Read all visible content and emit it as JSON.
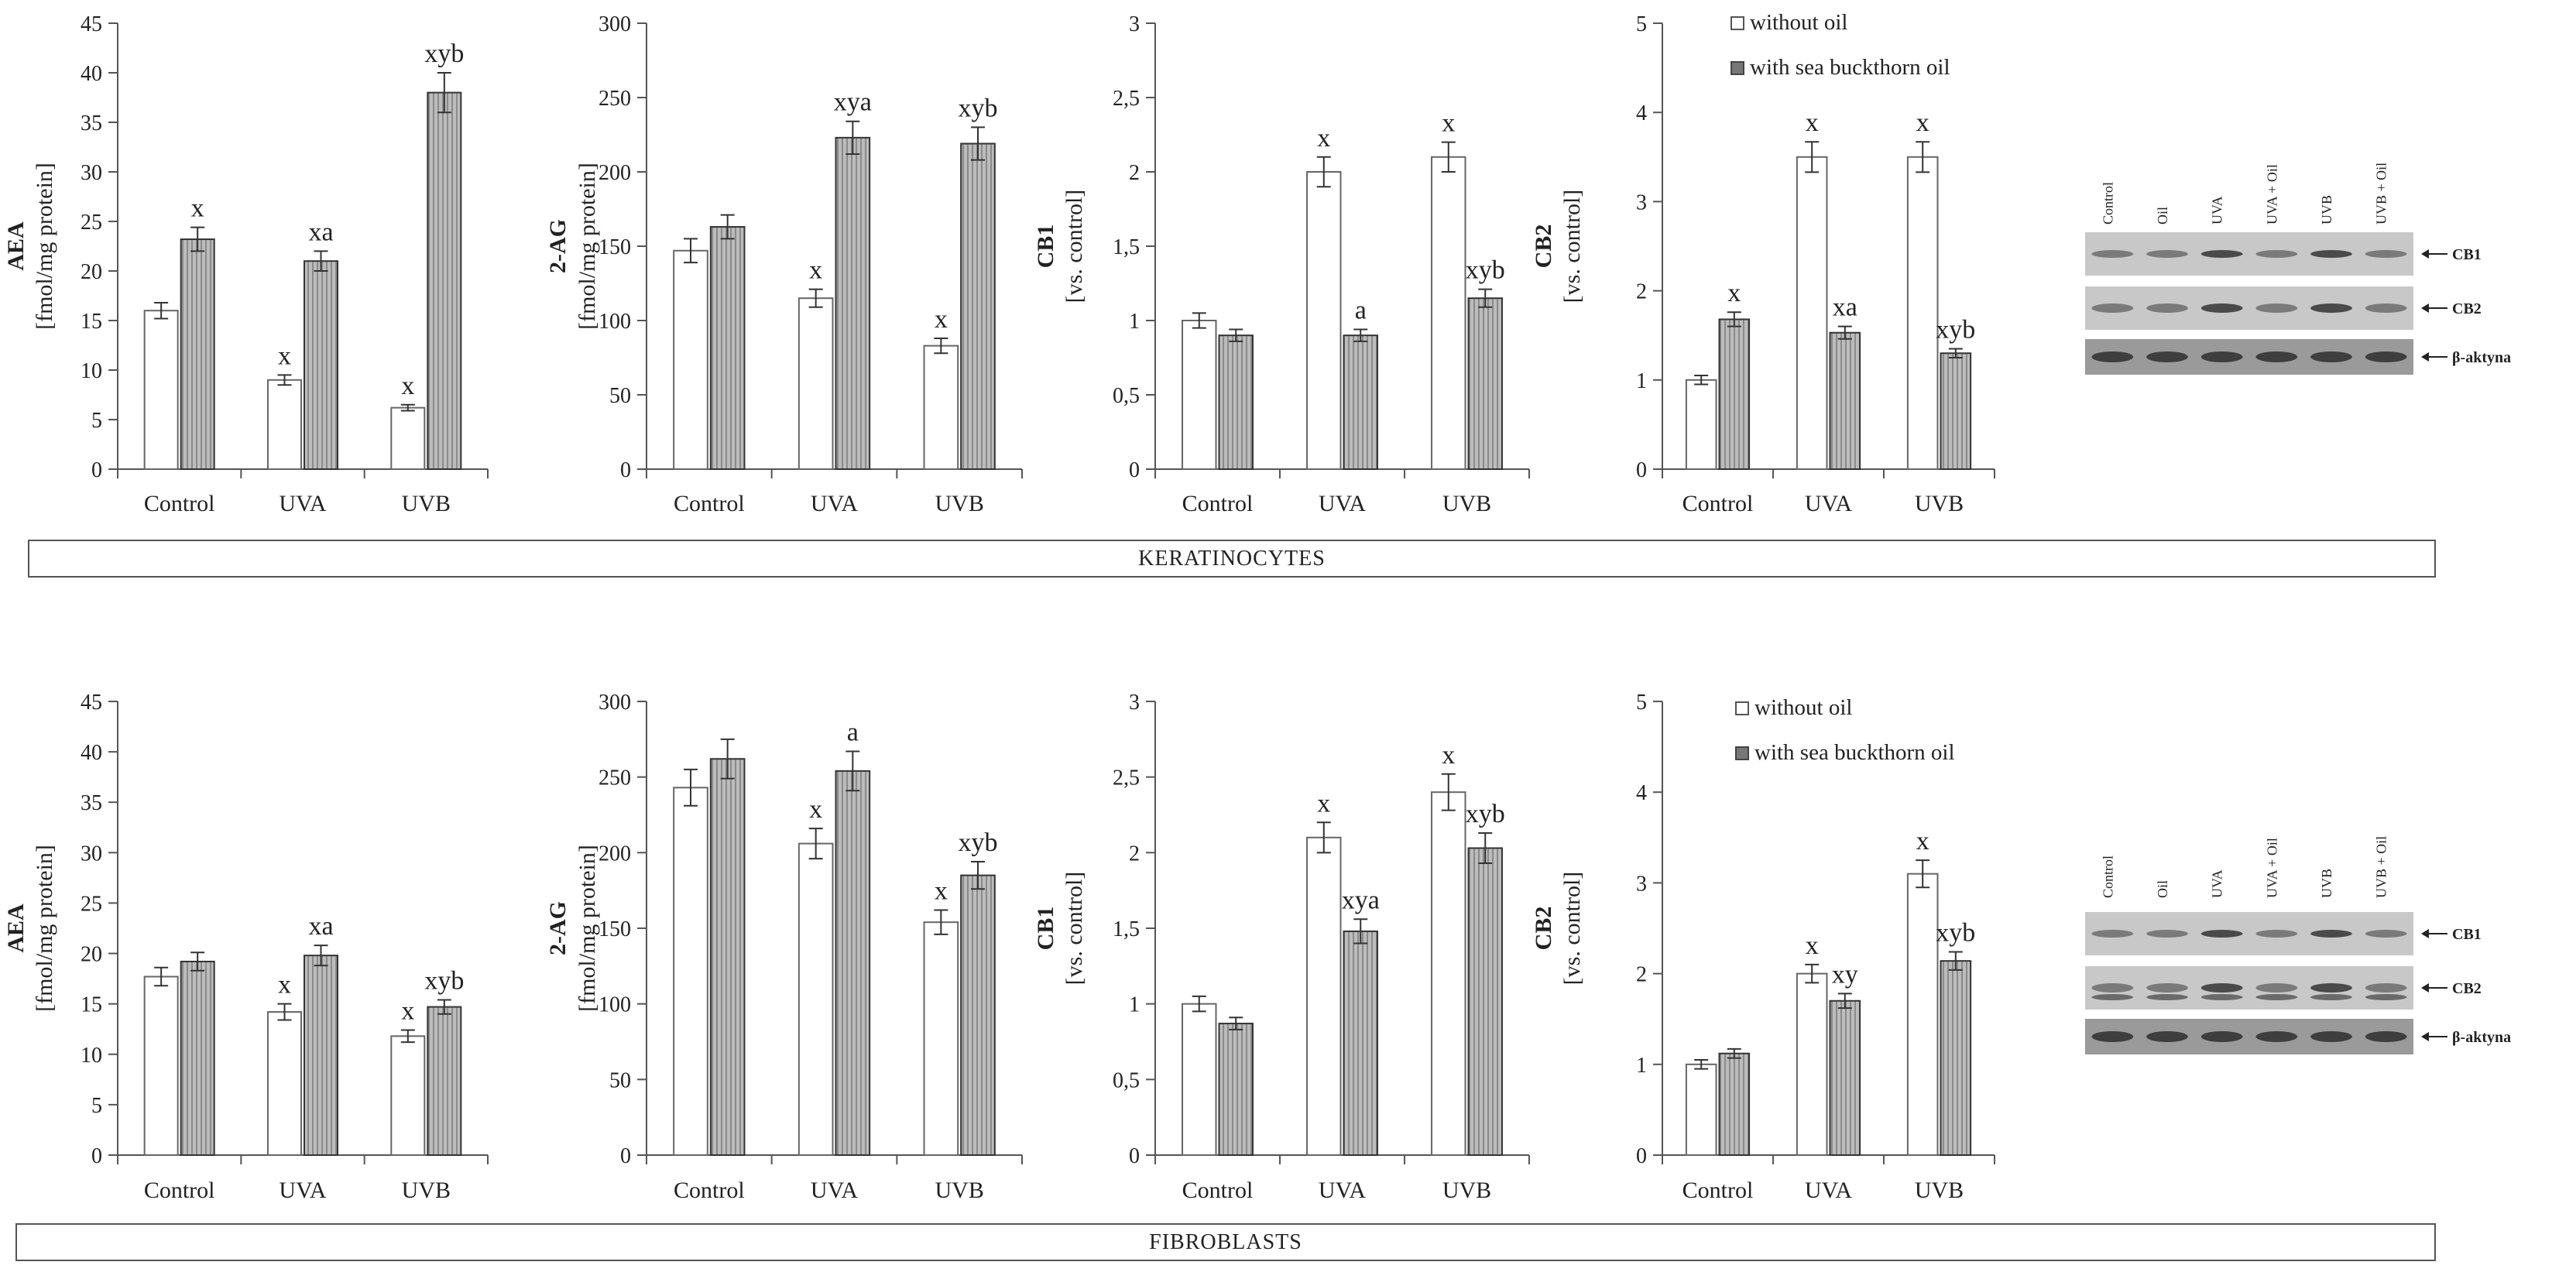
{
  "legend": {
    "without_oil": "without oil",
    "with_oil": "with sea buckthorn oil"
  },
  "sections": [
    {
      "label": "KERATINOCYTES"
    },
    {
      "label": "FIBROBLASTS"
    }
  ],
  "blots": [
    {
      "lanes": [
        "Control",
        "Oil",
        "UVA",
        "UVA + Oil",
        "UVB",
        "UVB + Oil"
      ],
      "bands": [
        "CB1",
        "CB2",
        "β-aktyna"
      ]
    },
    {
      "lanes": [
        "Control",
        "Oil",
        "UVA",
        "UVA + Oil",
        "UVB",
        "UVB + Oil"
      ],
      "bands": [
        "CB1",
        "CB2",
        "β-aktyna"
      ]
    }
  ],
  "chart_data": [
    {
      "type": "bar",
      "section": "KERATINOCYTES",
      "ylabel": "AEA",
      "yunit": "[fmol/mg protein]",
      "categories": [
        "Control",
        "UVA",
        "UVB"
      ],
      "ylim": [
        0,
        45
      ],
      "yticks": [
        "0",
        "5",
        "10",
        "15",
        "20",
        "25",
        "30",
        "35",
        "40",
        "45"
      ],
      "series": [
        {
          "name": "without oil",
          "values": [
            16,
            9,
            6.2
          ],
          "errors": [
            0.8,
            0.5,
            0.3
          ],
          "labels": [
            "",
            "x",
            "x"
          ]
        },
        {
          "name": "with sea buckthorn oil",
          "values": [
            23.2,
            21,
            38
          ],
          "errors": [
            1.2,
            1.0,
            2.0
          ],
          "labels": [
            "x",
            "xa",
            "xyb"
          ]
        }
      ]
    },
    {
      "type": "bar",
      "section": "KERATINOCYTES",
      "ylabel": "2-AG",
      "yunit": "[fmol/mg protein]",
      "categories": [
        "Control",
        "UVA",
        "UVB"
      ],
      "ylim": [
        0,
        300
      ],
      "yticks": [
        "0",
        "50",
        "100",
        "150",
        "200",
        "250",
        "300"
      ],
      "series": [
        {
          "name": "without oil",
          "values": [
            147,
            115,
            83
          ],
          "errors": [
            8,
            6,
            5
          ],
          "labels": [
            "",
            "x",
            "x"
          ]
        },
        {
          "name": "with sea buckthorn oil",
          "values": [
            163,
            223,
            219
          ],
          "errors": [
            8,
            11,
            11
          ],
          "labels": [
            "",
            "xya",
            "xyb"
          ]
        }
      ]
    },
    {
      "type": "bar",
      "section": "KERATINOCYTES",
      "ylabel": "CB1",
      "yunit": "[vs. control]",
      "categories": [
        "Control",
        "UVA",
        "UVB"
      ],
      "ylim": [
        0,
        3
      ],
      "yticks": [
        "0",
        "0,5",
        "1",
        "1,5",
        "2",
        "2,5",
        "3"
      ],
      "series": [
        {
          "name": "without oil",
          "values": [
            1.0,
            2.0,
            2.1
          ],
          "errors": [
            0.05,
            0.1,
            0.1
          ],
          "labels": [
            "",
            "x",
            "x"
          ]
        },
        {
          "name": "with sea buckthorn oil",
          "values": [
            0.9,
            0.9,
            1.15
          ],
          "errors": [
            0.04,
            0.04,
            0.06
          ],
          "labels": [
            "",
            "a",
            "xyb"
          ]
        }
      ]
    },
    {
      "type": "bar",
      "section": "KERATINOCYTES",
      "ylabel": "CB2",
      "yunit": "[vs. control]",
      "categories": [
        "Control",
        "UVA",
        "UVB"
      ],
      "ylim": [
        0,
        5
      ],
      "yticks": [
        "0",
        "1",
        "2",
        "3",
        "4",
        "5"
      ],
      "series": [
        {
          "name": "without oil",
          "values": [
            1.0,
            3.5,
            3.5
          ],
          "errors": [
            0.05,
            0.17,
            0.17
          ],
          "labels": [
            "",
            "x",
            "x"
          ]
        },
        {
          "name": "with sea buckthorn oil",
          "values": [
            1.68,
            1.53,
            1.3
          ],
          "errors": [
            0.08,
            0.07,
            0.05
          ],
          "labels": [
            "x",
            "xa",
            "xyb"
          ]
        }
      ]
    },
    {
      "type": "bar",
      "section": "FIBROBLASTS",
      "ylabel": "AEA",
      "yunit": "[fmol/mg protein]",
      "categories": [
        "Control",
        "UVA",
        "UVB"
      ],
      "ylim": [
        0,
        45
      ],
      "yticks": [
        "0",
        "5",
        "10",
        "15",
        "20",
        "25",
        "30",
        "35",
        "40",
        "45"
      ],
      "series": [
        {
          "name": "without oil",
          "values": [
            17.7,
            14.2,
            11.8
          ],
          "errors": [
            0.9,
            0.8,
            0.6
          ],
          "labels": [
            "",
            "x",
            "x"
          ]
        },
        {
          "name": "with sea buckthorn oil",
          "values": [
            19.2,
            19.8,
            14.7
          ],
          "errors": [
            0.9,
            1.0,
            0.7
          ],
          "labels": [
            "",
            "xa",
            "xyb"
          ]
        }
      ]
    },
    {
      "type": "bar",
      "section": "FIBROBLASTS",
      "ylabel": "2-AG",
      "yunit": "[fmol/mg protein]",
      "categories": [
        "Control",
        "UVA",
        "UVB"
      ],
      "ylim": [
        0,
        300
      ],
      "yticks": [
        "0",
        "50",
        "100",
        "150",
        "200",
        "250",
        "300"
      ],
      "series": [
        {
          "name": "without oil",
          "values": [
            243,
            206,
            154
          ],
          "errors": [
            12,
            10,
            8
          ],
          "labels": [
            "",
            "x",
            "x"
          ]
        },
        {
          "name": "with sea buckthorn oil",
          "values": [
            262,
            254,
            185
          ],
          "errors": [
            13,
            13,
            9
          ],
          "labels": [
            "",
            "a",
            "xyb"
          ]
        }
      ]
    },
    {
      "type": "bar",
      "section": "FIBROBLASTS",
      "ylabel": "CB1",
      "yunit": "[vs. control]",
      "categories": [
        "Control",
        "UVA",
        "UVB"
      ],
      "ylim": [
        0,
        3
      ],
      "yticks": [
        "0",
        "0,5",
        "1",
        "1,5",
        "2",
        "2,5",
        "3"
      ],
      "series": [
        {
          "name": "without oil",
          "values": [
            1.0,
            2.1,
            2.4
          ],
          "errors": [
            0.05,
            0.1,
            0.12
          ],
          "labels": [
            "",
            "x",
            "x"
          ]
        },
        {
          "name": "with sea buckthorn oil",
          "values": [
            0.87,
            1.48,
            2.03
          ],
          "errors": [
            0.04,
            0.08,
            0.1
          ],
          "labels": [
            "",
            "xya",
            "xyb"
          ]
        }
      ]
    },
    {
      "type": "bar",
      "section": "FIBROBLASTS",
      "ylabel": "CB2",
      "yunit": "[vs. control]",
      "categories": [
        "Control",
        "UVA",
        "UVB"
      ],
      "ylim": [
        0,
        5
      ],
      "yticks": [
        "0",
        "1",
        "2",
        "3",
        "4",
        "5"
      ],
      "series": [
        {
          "name": "without oil",
          "values": [
            1.0,
            2.0,
            3.1
          ],
          "errors": [
            0.05,
            0.1,
            0.15
          ],
          "labels": [
            "",
            "x",
            "x"
          ]
        },
        {
          "name": "with sea buckthorn oil",
          "values": [
            1.12,
            1.7,
            2.14
          ],
          "errors": [
            0.05,
            0.08,
            0.1
          ],
          "labels": [
            "",
            "xy",
            "xyb"
          ]
        }
      ]
    }
  ]
}
